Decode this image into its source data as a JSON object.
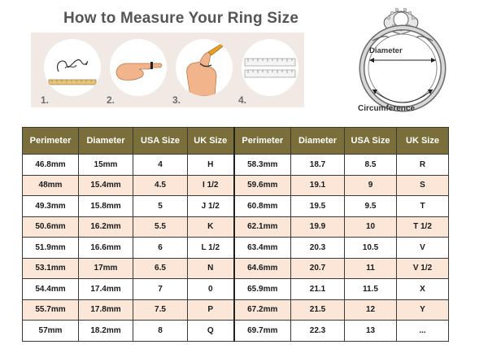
{
  "title": "How to Measure Your Ring Size",
  "steps": [
    {
      "number": "1.",
      "icon": "string-ruler-icon"
    },
    {
      "number": "2.",
      "icon": "hand-wrap-icon"
    },
    {
      "number": "3.",
      "icon": "finger-mark-icon"
    },
    {
      "number": "4.",
      "icon": "ruler-measure-icon"
    }
  ],
  "diagram": {
    "diameter_label": "Diameter",
    "circumference_label": "Circumference",
    "icon": "ring-diagram-icon"
  },
  "table": {
    "headers": [
      "Perimeter",
      "Diameter",
      "USA Size",
      "UK Size",
      "Perimeter",
      "Diameter",
      "USA Size",
      "UK Size"
    ],
    "rows": [
      [
        "46.8mm",
        "15mm",
        "4",
        "H",
        "58.3mm",
        "18.7",
        "8.5",
        "R"
      ],
      [
        "48mm",
        "15.4mm",
        "4.5",
        "I 1/2",
        "59.6mm",
        "19.1",
        "9",
        "S"
      ],
      [
        "49.3mm",
        "15.8mm",
        "5",
        "J 1/2",
        "60.8mm",
        "19.5",
        "9.5",
        "T"
      ],
      [
        "50.6mm",
        "16.2mm",
        "5.5",
        "K",
        "62.1mm",
        "19.9",
        "10",
        "T 1/2"
      ],
      [
        "51.9mm",
        "16.6mm",
        "6",
        "L 1/2",
        "63.4mm",
        "20.3",
        "10.5",
        "V"
      ],
      [
        "53.1mm",
        "17mm",
        "6.5",
        "N",
        "64.6mm",
        "20.7",
        "11",
        "V 1/2"
      ],
      [
        "54.4mm",
        "17.4mm",
        "7",
        "0",
        "65.9mm",
        "21.1",
        "11.5",
        "X"
      ],
      [
        "55.7mm",
        "17.8mm",
        "7.5",
        "P",
        "67.2mm",
        "21.5",
        "12",
        "Y"
      ],
      [
        "57mm",
        "18.2mm",
        "8",
        "Q",
        "69.7mm",
        "22.3",
        "13",
        "..."
      ]
    ]
  },
  "colors": {
    "header_bg": "#7a6e3a",
    "stripe_bg": "#fbe6d8",
    "panel_bg": "#f1e9e4",
    "title_color": "#555555"
  }
}
